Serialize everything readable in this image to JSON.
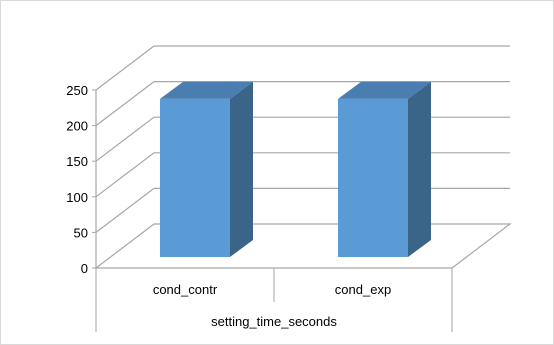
{
  "chart_data": {
    "type": "bar",
    "style": "3d-column",
    "title": "",
    "xlabel": "",
    "ylabel": "",
    "group_label": "setting_time_seconds",
    "categories": [
      "cond_contr",
      "cond_exp"
    ],
    "series": [
      {
        "values": [
          222,
          222
        ]
      }
    ],
    "ylim": [
      0,
      250
    ],
    "yticks": [
      "0",
      "50",
      "100",
      "150",
      "200",
      "250"
    ],
    "grid": true,
    "legend": "none",
    "colors": {
      "bar_front": "#5B9BD5",
      "bar_side": "#3A6588",
      "bar_top": "#4A7DB0",
      "gridline": "#A6A6A6",
      "frame": "#D9D9D9"
    }
  }
}
